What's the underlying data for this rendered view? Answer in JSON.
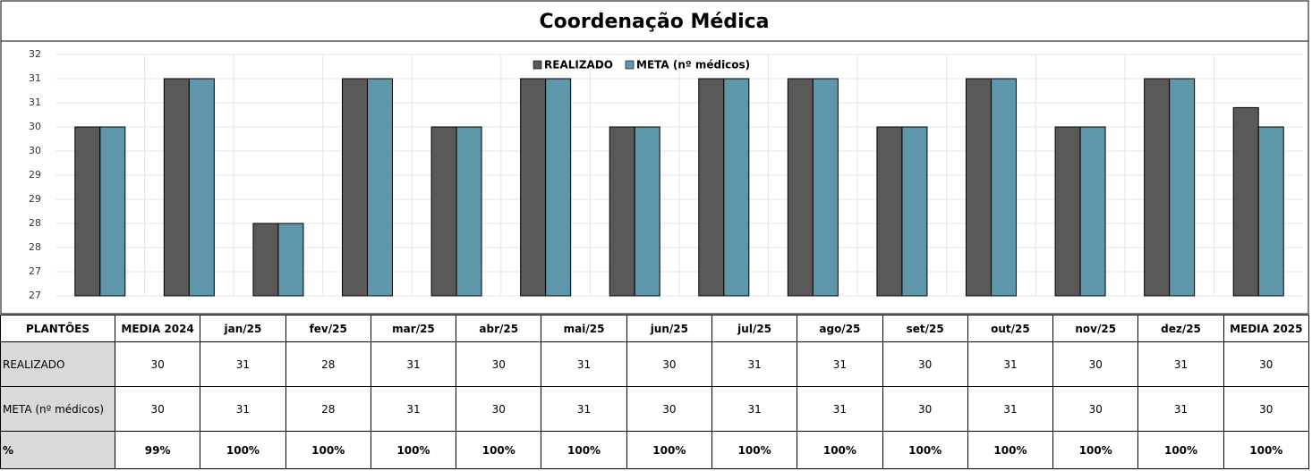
{
  "chart_data": {
    "type": "bar",
    "title": "Coordenação Médica",
    "categories": [
      "MEDIA 2024",
      "jan/25",
      "fev/25",
      "mar/25",
      "abr/25",
      "mai/25",
      "jun/25",
      "jul/25",
      "ago/25",
      "set/25",
      "out/25",
      "nov/25",
      "dez/25",
      "MEDIA 2025"
    ],
    "series": [
      {
        "name": "REALIZADO",
        "color": "#595959",
        "values": [
          30,
          31,
          28,
          31,
          30,
          31,
          30,
          31,
          31,
          30,
          31,
          30,
          31,
          30.4
        ],
        "value_labels": [
          "30",
          "31",
          "28",
          "31",
          "30",
          "31",
          "30",
          "31",
          "31",
          "30",
          "31",
          "30",
          "31",
          "30"
        ]
      },
      {
        "name": "META (nº médicos)",
        "color": "#5e96ac",
        "values": [
          30,
          31,
          28,
          31,
          30,
          31,
          30,
          31,
          31,
          30,
          31,
          30,
          31,
          30
        ]
      }
    ],
    "ylim": [
      26.5,
      31.5
    ],
    "yticks": [
      {
        "value": 26.5,
        "label": "27"
      },
      27,
      {
        "value": 27.5,
        "label": "28"
      },
      28,
      {
        "value": 28.5,
        "label": "29"
      },
      29,
      {
        "value": 29.5,
        "label": "30"
      },
      30,
      {
        "value": 30.5,
        "label": "31"
      },
      31,
      {
        "value": 31.5,
        "label": "32"
      }
    ],
    "grid": true,
    "legend": "top"
  },
  "table": {
    "corner": "PLANTÕES",
    "percent_label": "%",
    "percent": [
      "99%",
      "100%",
      "100%",
      "100%",
      "100%",
      "100%",
      "100%",
      "100%",
      "100%",
      "100%",
      "100%",
      "100%",
      "100%",
      "100%"
    ]
  }
}
